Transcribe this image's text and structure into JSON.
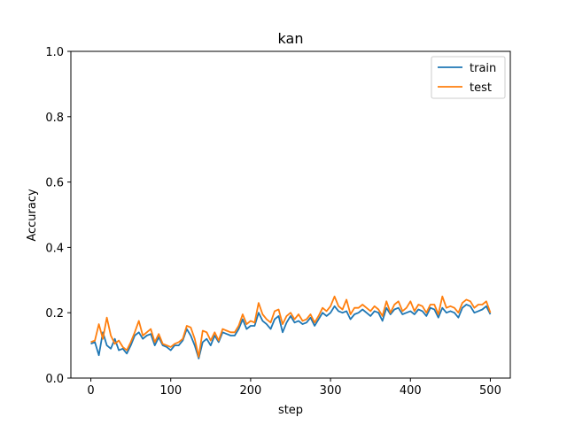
{
  "chart_data": {
    "type": "line",
    "title": "kan",
    "xlabel": "step",
    "ylabel": "Accuracy",
    "xlim": [
      -25,
      525
    ],
    "ylim": [
      0.0,
      1.0
    ],
    "x_ticks": [
      0,
      100,
      200,
      300,
      400,
      500
    ],
    "y_ticks": [
      0.0,
      0.2,
      0.4,
      0.6,
      0.8,
      1.0
    ],
    "y_tick_labels": [
      "0.0",
      "0.2",
      "0.4",
      "0.6",
      "0.8",
      "1.0"
    ],
    "grid": false,
    "legend_position": "top-right",
    "series": [
      {
        "name": "train",
        "color": "#1f77b4",
        "x": [
          0,
          5,
          10,
          15,
          20,
          25,
          30,
          35,
          40,
          45,
          50,
          55,
          60,
          65,
          70,
          75,
          80,
          85,
          90,
          95,
          100,
          105,
          110,
          115,
          120,
          125,
          130,
          135,
          140,
          145,
          150,
          155,
          160,
          165,
          170,
          175,
          180,
          185,
          190,
          195,
          200,
          205,
          210,
          215,
          220,
          225,
          230,
          235,
          240,
          245,
          250,
          255,
          260,
          265,
          270,
          275,
          280,
          285,
          290,
          295,
          300,
          305,
          310,
          315,
          320,
          325,
          330,
          335,
          340,
          345,
          350,
          355,
          360,
          365,
          370,
          375,
          380,
          385,
          390,
          395,
          400,
          405,
          410,
          415,
          420,
          425,
          430,
          435,
          440,
          445,
          450,
          455,
          460,
          465,
          470,
          475,
          480,
          485,
          490,
          495,
          500
        ],
        "y": [
          0.105,
          0.11,
          0.07,
          0.14,
          0.1,
          0.09,
          0.12,
          0.085,
          0.09,
          0.075,
          0.1,
          0.13,
          0.14,
          0.12,
          0.13,
          0.135,
          0.1,
          0.125,
          0.1,
          0.095,
          0.085,
          0.1,
          0.1,
          0.115,
          0.15,
          0.13,
          0.1,
          0.06,
          0.11,
          0.12,
          0.1,
          0.13,
          0.11,
          0.14,
          0.135,
          0.13,
          0.13,
          0.15,
          0.18,
          0.15,
          0.16,
          0.16,
          0.2,
          0.175,
          0.165,
          0.15,
          0.18,
          0.19,
          0.14,
          0.17,
          0.19,
          0.17,
          0.175,
          0.165,
          0.17,
          0.185,
          0.16,
          0.18,
          0.2,
          0.19,
          0.2,
          0.22,
          0.205,
          0.2,
          0.205,
          0.18,
          0.195,
          0.2,
          0.21,
          0.2,
          0.19,
          0.205,
          0.2,
          0.175,
          0.215,
          0.195,
          0.21,
          0.215,
          0.195,
          0.2,
          0.205,
          0.195,
          0.21,
          0.205,
          0.19,
          0.215,
          0.21,
          0.185,
          0.215,
          0.2,
          0.205,
          0.2,
          0.185,
          0.215,
          0.225,
          0.22,
          0.2,
          0.205,
          0.21,
          0.22,
          0.195
        ]
      },
      {
        "name": "test",
        "color": "#ff7f0e",
        "x": [
          0,
          5,
          10,
          15,
          20,
          25,
          30,
          35,
          40,
          45,
          50,
          55,
          60,
          65,
          70,
          75,
          80,
          85,
          90,
          95,
          100,
          105,
          110,
          115,
          120,
          125,
          130,
          135,
          140,
          145,
          150,
          155,
          160,
          165,
          170,
          175,
          180,
          185,
          190,
          195,
          200,
          205,
          210,
          215,
          220,
          225,
          230,
          235,
          240,
          245,
          250,
          255,
          260,
          265,
          270,
          275,
          280,
          285,
          290,
          295,
          300,
          305,
          310,
          315,
          320,
          325,
          330,
          335,
          340,
          345,
          350,
          355,
          360,
          365,
          370,
          375,
          380,
          385,
          390,
          395,
          400,
          405,
          410,
          415,
          420,
          425,
          430,
          435,
          440,
          445,
          450,
          455,
          460,
          465,
          470,
          475,
          480,
          485,
          490,
          495,
          500
        ],
        "y": [
          0.11,
          0.115,
          0.165,
          0.12,
          0.185,
          0.13,
          0.105,
          0.115,
          0.095,
          0.085,
          0.11,
          0.14,
          0.175,
          0.13,
          0.14,
          0.15,
          0.11,
          0.135,
          0.105,
          0.1,
          0.095,
          0.105,
          0.11,
          0.12,
          0.16,
          0.155,
          0.12,
          0.065,
          0.145,
          0.14,
          0.115,
          0.14,
          0.115,
          0.15,
          0.145,
          0.14,
          0.14,
          0.16,
          0.195,
          0.165,
          0.175,
          0.17,
          0.23,
          0.195,
          0.18,
          0.17,
          0.205,
          0.21,
          0.165,
          0.19,
          0.2,
          0.18,
          0.195,
          0.175,
          0.18,
          0.195,
          0.17,
          0.19,
          0.215,
          0.205,
          0.22,
          0.25,
          0.22,
          0.21,
          0.24,
          0.195,
          0.215,
          0.215,
          0.225,
          0.215,
          0.205,
          0.22,
          0.21,
          0.19,
          0.235,
          0.2,
          0.225,
          0.235,
          0.205,
          0.215,
          0.235,
          0.205,
          0.225,
          0.22,
          0.2,
          0.225,
          0.225,
          0.195,
          0.25,
          0.215,
          0.22,
          0.215,
          0.2,
          0.23,
          0.24,
          0.235,
          0.215,
          0.225,
          0.225,
          0.235,
          0.2
        ]
      }
    ]
  }
}
